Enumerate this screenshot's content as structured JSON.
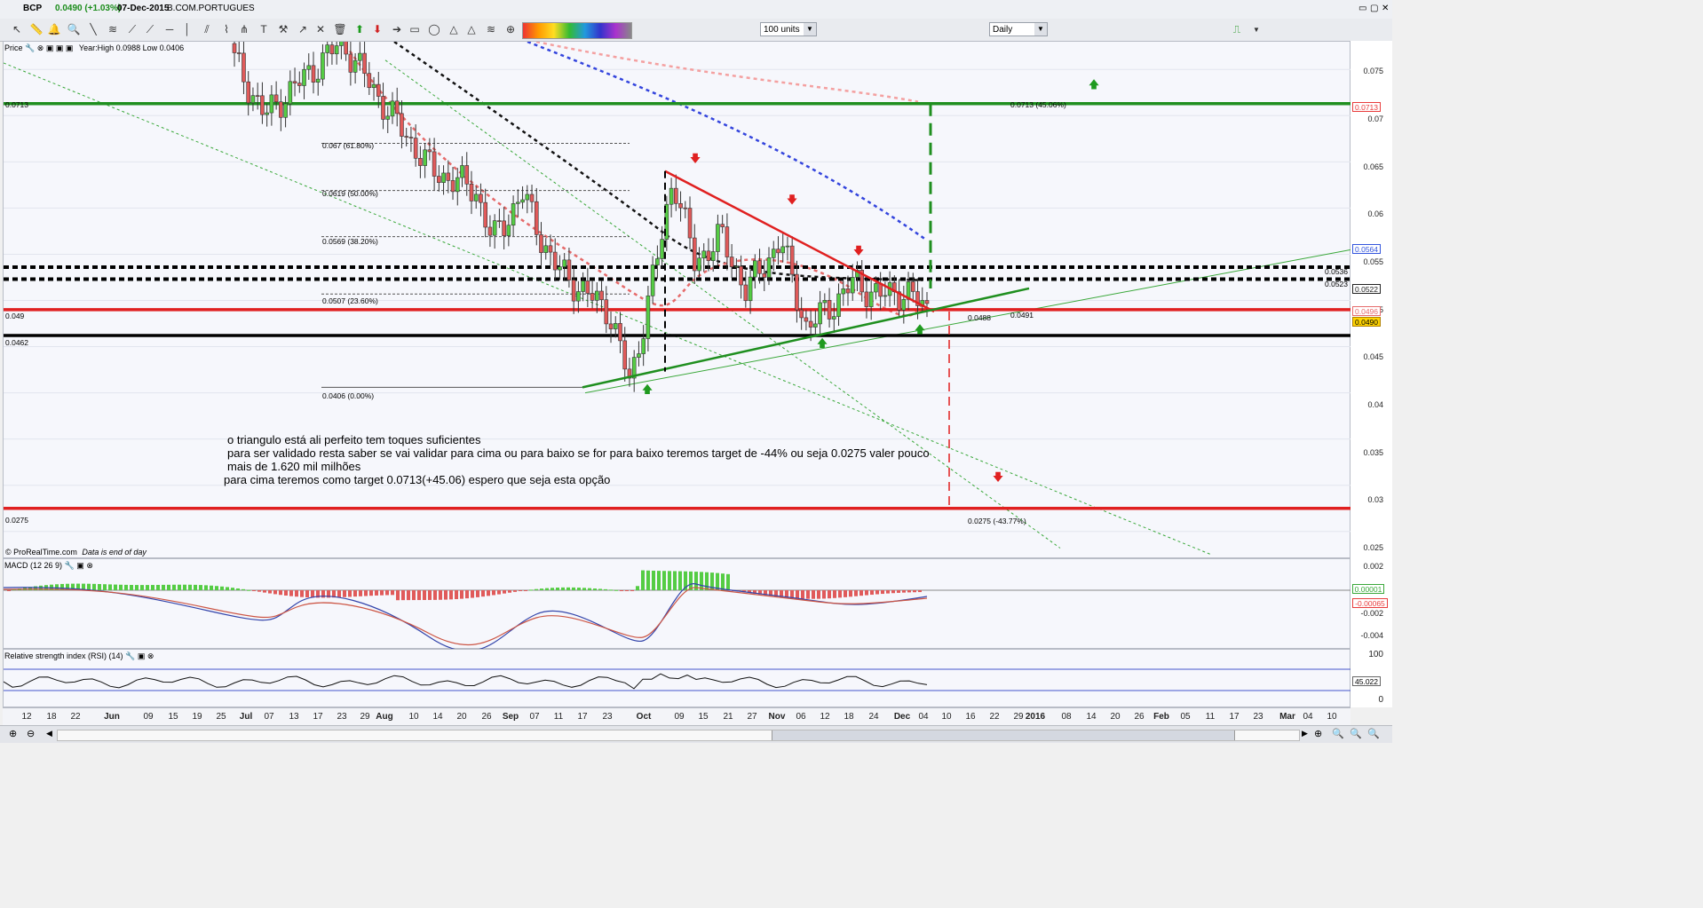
{
  "window": {
    "symbol": "BCP",
    "price_change": "0.0490 (+1.03%)",
    "date": "07-Dec-2015",
    "name": "B.COM.PORTUGUES"
  },
  "toolbar": {
    "units_value": "100 units",
    "period_value": "Daily"
  },
  "price_panel": {
    "title": "Price",
    "info": "Year:High 0.0988 Low 0.0406",
    "footer_logo": "© ProRealTime.com",
    "footer_note": "Data is end of day",
    "y_ticks": [
      "0.075",
      "0.07",
      "0.065",
      "0.06",
      "0.055",
      "0.05",
      "0.045",
      "0.04",
      "0.035",
      "0.03",
      "0.025"
    ],
    "price_tags": [
      {
        "text": "0.0713",
        "color": "#e83c3c"
      },
      {
        "text": "0.0564",
        "color": "#3355dd"
      },
      {
        "text": "0.0522",
        "color": "#222222"
      },
      {
        "text": "0.0496",
        "color": "#e66a6a"
      },
      {
        "text": "0.0490",
        "color": "#d4a400"
      }
    ],
    "level_labels": {
      "l0713": "0.0713",
      "l049": "0.049",
      "l0462": "0.0462",
      "l0275": "0.0275",
      "r0536": "0.0536",
      "r0523": "0.0523"
    },
    "annotations": {
      "target_up": "0.0713 (45.06%)",
      "target_down": "0.0275 (-43.77%)",
      "tri_a": "0.0488",
      "tri_b": "0.0491",
      "fib0": "0.067 (61.80%)",
      "fib1": "0.0619 (50.00%)",
      "fib2": "0.0569 (38.20%)",
      "fib3": "0.0507 (23.60%)",
      "fib4": "0.0406 (0.00%)"
    },
    "note_lines": [
      "o triangulo está ali perfeito tem toques suficientes",
      "para ser validado resta saber se vai validar para cima ou para baixo se for para baixo teremos target de -44% ou seja 0.0275  valer pouco",
      "mais de 1.620 mil milhões",
      "para cima teremos como target  0.0713(+45.06) espero que seja esta opção"
    ]
  },
  "macd_panel": {
    "title": "MACD (12 26 9)",
    "y_ticks": [
      "0.002",
      "0",
      "-0.002",
      "-0.004"
    ],
    "tags": [
      {
        "text": "0.00001",
        "color": "#3aa83a"
      },
      {
        "text": "-0.00065",
        "color": "#e83c3c"
      }
    ]
  },
  "rsi_panel": {
    "title": "Relative strength index (RSI) (14)",
    "y_ticks": [
      "100",
      "0"
    ],
    "tag": "45.022"
  },
  "x_axis": {
    "labels": [
      "12",
      "18",
      "22",
      "Jun",
      "09",
      "15",
      "19",
      "25",
      "Jul",
      "07",
      "13",
      "17",
      "23",
      "29",
      "Aug",
      "10",
      "14",
      "20",
      "26",
      "Sep",
      "07",
      "11",
      "17",
      "23",
      "Oct",
      "09",
      "15",
      "21",
      "27",
      "Nov",
      "06",
      "12",
      "18",
      "24",
      "Dec",
      "04",
      "10",
      "16",
      "22",
      "29",
      "2016",
      "08",
      "14",
      "20",
      "26",
      "Feb",
      "05",
      "11",
      "17",
      "23",
      "Mar",
      "04",
      "10"
    ]
  },
  "chart_data": {
    "type": "candlestick",
    "title": "BCP",
    "ylim": [
      0.022,
      0.078
    ],
    "x_range": [
      "2015-05-08",
      "2016-03-14"
    ],
    "ohlc_approx": [
      {
        "date": "2015-06-29",
        "close": 0.076
      },
      {
        "date": "2015-07-06",
        "close": 0.07
      },
      {
        "date": "2015-07-24",
        "close": 0.078
      },
      {
        "date": "2015-08-03",
        "close": 0.071
      },
      {
        "date": "2015-08-14",
        "close": 0.064
      },
      {
        "date": "2015-08-24",
        "close": 0.062
      },
      {
        "date": "2015-08-28",
        "close": 0.0565
      },
      {
        "date": "2015-09-04",
        "close": 0.0615
      },
      {
        "date": "2015-09-11",
        "close": 0.054
      },
      {
        "date": "2015-09-18",
        "close": 0.051
      },
      {
        "date": "2015-09-24",
        "close": 0.049
      },
      {
        "date": "2015-09-29",
        "close": 0.041
      },
      {
        "date": "2015-10-06",
        "close": 0.056
      },
      {
        "date": "2015-10-09",
        "close": 0.0635
      },
      {
        "date": "2015-10-14",
        "close": 0.054
      },
      {
        "date": "2015-10-20",
        "close": 0.057
      },
      {
        "date": "2015-10-26",
        "close": 0.051
      },
      {
        "date": "2015-11-03",
        "close": 0.0565
      },
      {
        "date": "2015-11-09",
        "close": 0.047
      },
      {
        "date": "2015-11-16",
        "close": 0.05
      },
      {
        "date": "2015-11-20",
        "close": 0.052
      },
      {
        "date": "2015-11-26",
        "close": 0.0505
      },
      {
        "date": "2015-12-02",
        "close": 0.051
      },
      {
        "date": "2015-12-07",
        "close": 0.049
      }
    ],
    "levels": [
      {
        "value": 0.0713,
        "color": "#1f8f1f"
      },
      {
        "value": 0.0536,
        "color": "#000000",
        "style": "dotted"
      },
      {
        "value": 0.0523,
        "color": "#000000",
        "style": "dotted"
      },
      {
        "value": 0.049,
        "color": "#e02020"
      },
      {
        "value": 0.0462,
        "color": "#000000"
      },
      {
        "value": 0.0275,
        "color": "#e02020"
      }
    ],
    "fibonacci": [
      {
        "label": "0.067 (61.80%)",
        "value": 0.067
      },
      {
        "label": "0.0619 (50.00%)",
        "value": 0.0619
      },
      {
        "label": "0.0569 (38.20%)",
        "value": 0.0569
      },
      {
        "label": "0.0507 (23.60%)",
        "value": 0.0507
      },
      {
        "label": "0.0406 (0.00%)",
        "value": 0.0406
      }
    ]
  }
}
